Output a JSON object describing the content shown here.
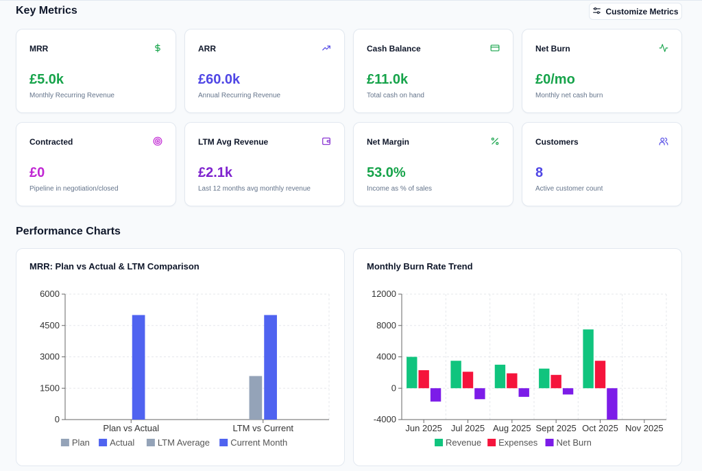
{
  "sections": {
    "key_metrics": "Key Metrics",
    "performance_charts": "Performance Charts"
  },
  "customize_button": {
    "label": "Customize Metrics",
    "icon": "sliders-icon"
  },
  "metrics": [
    {
      "label": "MRR",
      "value": "£5.0k",
      "sub": "Monthly Recurring Revenue",
      "color": "#16a34a",
      "icon": "dollar-icon"
    },
    {
      "label": "ARR",
      "value": "£60.0k",
      "sub": "Annual Recurring Revenue",
      "color": "#4f46e5",
      "icon": "trending-up-icon"
    },
    {
      "label": "Cash Balance",
      "value": "£11.0k",
      "sub": "Total cash on hand",
      "color": "#16a34a",
      "icon": "credit-card-icon"
    },
    {
      "label": "Net Burn",
      "value": "£0/mo",
      "sub": "Monthly net cash burn",
      "color": "#16a34a",
      "icon": "activity-icon"
    },
    {
      "label": "Contracted",
      "value": "£0",
      "sub": "Pipeline in negotiation/closed",
      "color": "#c026d3",
      "icon": "target-icon"
    },
    {
      "label": "LTM Avg Revenue",
      "value": "£2.1k",
      "sub": "Last 12 months avg monthly revenue",
      "color": "#7e22ce",
      "icon": "wallet-icon"
    },
    {
      "label": "Net Margin",
      "value": "53.0%",
      "sub": "Income as % of sales",
      "color": "#16a34a",
      "icon": "percent-icon"
    },
    {
      "label": "Customers",
      "value": "8",
      "sub": "Active customer count",
      "color": "#4f46e5",
      "icon": "users-icon"
    }
  ],
  "chart_data": [
    {
      "type": "bar",
      "title": "MRR: Plan vs Actual & LTM Comparison",
      "categories": [
        "Plan vs Actual",
        "LTM vs Current"
      ],
      "series": [
        {
          "name": "Plan",
          "values": [
            0,
            null
          ],
          "color": "#94a3b8"
        },
        {
          "name": "Actual",
          "values": [
            5000,
            null
          ],
          "color": "#4f63f0"
        },
        {
          "name": "LTM Average",
          "values": [
            null,
            2083
          ],
          "color": "#94a3b8"
        },
        {
          "name": "Current Month",
          "values": [
            null,
            5000
          ],
          "color": "#4f63f0"
        }
      ],
      "yticks": [
        0,
        1500,
        3000,
        4500,
        6000
      ],
      "ylim": [
        0,
        6000
      ],
      "grid": true,
      "legend": "bottom"
    },
    {
      "type": "bar",
      "title": "Monthly Burn Rate Trend",
      "categories": [
        "Jun 2025",
        "Jul 2025",
        "Aug 2025",
        "Sept 2025",
        "Oct 2025",
        "Nov 2025"
      ],
      "series": [
        {
          "name": "Revenue",
          "values": [
            4000,
            3500,
            3000,
            2500,
            7500,
            0
          ],
          "color": "#10c47e"
        },
        {
          "name": "Expenses",
          "values": [
            2300,
            2100,
            1900,
            1700,
            3500,
            0
          ],
          "color": "#f5143c"
        },
        {
          "name": "Net Burn",
          "values": [
            -1700,
            -1400,
            -1100,
            -800,
            -4000,
            0
          ],
          "color": "#7c1ce8"
        }
      ],
      "yticks": [
        -4000,
        0,
        4000,
        8000,
        12000
      ],
      "ylim": [
        -4000,
        12000
      ],
      "grid": true,
      "legend": "bottom"
    }
  ]
}
